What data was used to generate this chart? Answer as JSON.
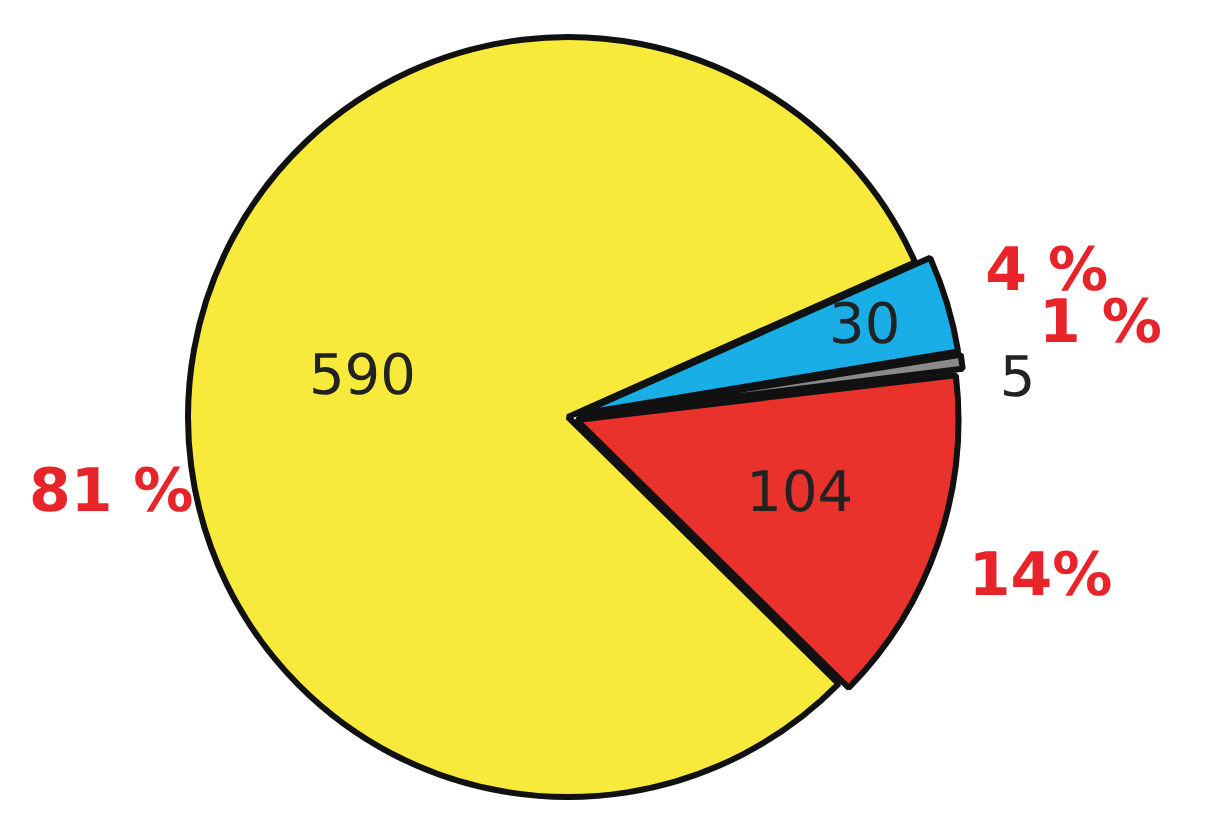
{
  "chart_data": {
    "type": "pie",
    "categories": [
      null,
      null,
      null,
      null
    ],
    "values": [
      590,
      30,
      5,
      104
    ],
    "colors": [
      "#f7ea3a",
      "#1aaee6",
      "#8a8a8a",
      "#e8322b"
    ],
    "data_labels": true,
    "legend": false,
    "annotations": [
      "81 %",
      "4 %",
      "1 %",
      "14%"
    ]
  }
}
